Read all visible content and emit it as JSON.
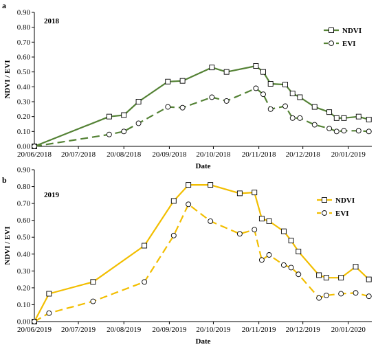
{
  "chart_data": [
    {
      "type": "line",
      "panel_label": "a",
      "inset_label": "2018",
      "xlabel": "Date",
      "ylabel": "NDVI / EVI",
      "ylim": [
        0,
        0.9
      ],
      "yticks": [
        "0.00",
        "0.10",
        "0.20",
        "0.30",
        "0.40",
        "0.50",
        "0.60",
        "0.70",
        "0.80",
        "0.90"
      ],
      "xlim": [
        "2018-06-20",
        "2019-02-05"
      ],
      "xticks": [
        {
          "date": "2018-06-20",
          "label": "20/06/2018"
        },
        {
          "date": "2018-07-20",
          "label": "20/07/2018"
        },
        {
          "date": "2018-08-20",
          "label": "20/08/2018"
        },
        {
          "date": "2018-09-20",
          "label": "20/09/2018"
        },
        {
          "date": "2018-10-20",
          "label": "20/10/2018"
        },
        {
          "date": "2018-11-20",
          "label": "20/11/2018"
        },
        {
          "date": "2018-12-20",
          "label": "20/12/2018"
        },
        {
          "date": "2019-01-20",
          "label": "20/01/2019"
        }
      ],
      "legend_position": "top-right",
      "series": [
        {
          "name": "NDVI",
          "color": "#548235",
          "marker": "square",
          "dash": "solid",
          "points": [
            [
              "2018-06-20",
              0.0
            ],
            [
              "2018-08-10",
              0.2
            ],
            [
              "2018-08-20",
              0.21
            ],
            [
              "2018-08-30",
              0.3
            ],
            [
              "2018-09-19",
              0.435
            ],
            [
              "2018-09-29",
              0.44
            ],
            [
              "2018-10-19",
              0.53
            ],
            [
              "2018-10-29",
              0.5
            ],
            [
              "2018-11-18",
              0.54
            ],
            [
              "2018-11-23",
              0.5
            ],
            [
              "2018-11-28",
              0.42
            ],
            [
              "2018-12-08",
              0.415
            ],
            [
              "2018-12-13",
              0.355
            ],
            [
              "2018-12-18",
              0.33
            ],
            [
              "2018-12-28",
              0.265
            ],
            [
              "2019-01-07",
              0.23
            ],
            [
              "2019-01-12",
              0.19
            ],
            [
              "2019-01-17",
              0.19
            ],
            [
              "2019-01-27",
              0.2
            ],
            [
              "2019-02-03",
              0.18
            ]
          ]
        },
        {
          "name": "EVI",
          "color": "#548235",
          "marker": "circle",
          "dash": "dashed",
          "points": [
            [
              "2018-06-20",
              0.0
            ],
            [
              "2018-08-10",
              0.08
            ],
            [
              "2018-08-20",
              0.1
            ],
            [
              "2018-08-30",
              0.155
            ],
            [
              "2018-09-19",
              0.265
            ],
            [
              "2018-09-29",
              0.26
            ],
            [
              "2018-10-19",
              0.33
            ],
            [
              "2018-10-29",
              0.305
            ],
            [
              "2018-11-18",
              0.39
            ],
            [
              "2018-11-23",
              0.35
            ],
            [
              "2018-11-28",
              0.25
            ],
            [
              "2018-12-08",
              0.27
            ],
            [
              "2018-12-13",
              0.19
            ],
            [
              "2018-12-18",
              0.19
            ],
            [
              "2018-12-28",
              0.145
            ],
            [
              "2019-01-07",
              0.12
            ],
            [
              "2019-01-12",
              0.1
            ],
            [
              "2019-01-17",
              0.105
            ],
            [
              "2019-01-27",
              0.105
            ],
            [
              "2019-02-03",
              0.1
            ]
          ]
        }
      ]
    },
    {
      "type": "line",
      "panel_label": "b",
      "inset_label": "2019",
      "xlabel": "Date",
      "ylabel": "NDVI / EVI",
      "ylim": [
        0,
        0.9
      ],
      "yticks": [
        "0.00",
        "0.10",
        "0.20",
        "0.30",
        "0.40",
        "0.50",
        "0.60",
        "0.70",
        "0.80",
        "0.90"
      ],
      "xlim": [
        "2019-06-20",
        "2020-02-05"
      ],
      "xticks": [
        {
          "date": "2019-06-20",
          "label": "20/06/2019"
        },
        {
          "date": "2019-07-20",
          "label": "20/07/2019"
        },
        {
          "date": "2019-08-20",
          "label": "20/08/2019"
        },
        {
          "date": "2019-09-20",
          "label": "20/09/2019"
        },
        {
          "date": "2019-10-20",
          "label": "20/10/2019"
        },
        {
          "date": "2019-11-20",
          "label": "20/11/2019"
        },
        {
          "date": "2019-12-20",
          "label": "20/12/2019"
        },
        {
          "date": "2020-01-20",
          "label": "20/01/2020"
        }
      ],
      "legend_position": "top-right",
      "series": [
        {
          "name": "NDVI",
          "color": "#F2BE00",
          "marker": "square",
          "dash": "solid",
          "points": [
            [
              "2019-06-20",
              0.0
            ],
            [
              "2019-06-30",
              0.165
            ],
            [
              "2019-07-30",
              0.235
            ],
            [
              "2019-09-03",
              0.45
            ],
            [
              "2019-09-23",
              0.715
            ],
            [
              "2019-10-03",
              0.81
            ],
            [
              "2019-10-18",
              0.81
            ],
            [
              "2019-11-07",
              0.76
            ],
            [
              "2019-11-17",
              0.765
            ],
            [
              "2019-11-22",
              0.61
            ],
            [
              "2019-11-27",
              0.595
            ],
            [
              "2019-12-07",
              0.535
            ],
            [
              "2019-12-12",
              0.48
            ],
            [
              "2019-12-17",
              0.415
            ],
            [
              "2019-12-31",
              0.275
            ],
            [
              "2020-01-05",
              0.26
            ],
            [
              "2020-01-15",
              0.26
            ],
            [
              "2020-01-25",
              0.325
            ],
            [
              "2020-02-03",
              0.25
            ]
          ]
        },
        {
          "name": "EVI",
          "color": "#F2BE00",
          "marker": "circle",
          "dash": "dashed",
          "points": [
            [
              "2019-06-20",
              0.0
            ],
            [
              "2019-06-30",
              0.05
            ],
            [
              "2019-07-30",
              0.12
            ],
            [
              "2019-09-03",
              0.235
            ],
            [
              "2019-09-23",
              0.51
            ],
            [
              "2019-10-03",
              0.695
            ],
            [
              "2019-10-18",
              0.595
            ],
            [
              "2019-11-07",
              0.52
            ],
            [
              "2019-11-17",
              0.545
            ],
            [
              "2019-11-22",
              0.365
            ],
            [
              "2019-11-27",
              0.395
            ],
            [
              "2019-12-07",
              0.335
            ],
            [
              "2019-12-12",
              0.32
            ],
            [
              "2019-12-17",
              0.28
            ],
            [
              "2019-12-31",
              0.14
            ],
            [
              "2020-01-05",
              0.155
            ],
            [
              "2020-01-15",
              0.165
            ],
            [
              "2020-01-25",
              0.17
            ],
            [
              "2020-02-03",
              0.15
            ]
          ]
        }
      ]
    }
  ]
}
